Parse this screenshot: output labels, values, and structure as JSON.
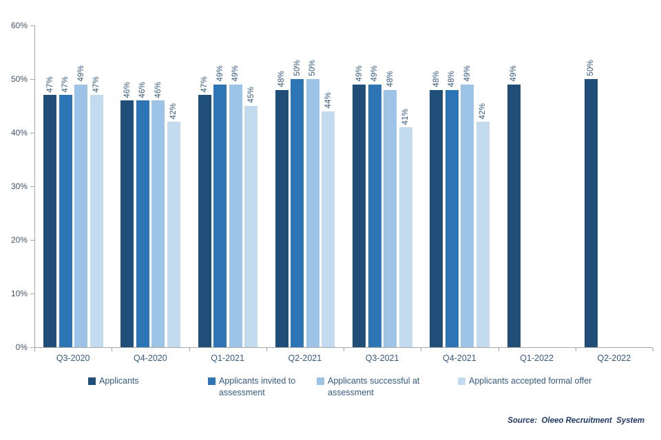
{
  "chart_data": {
    "type": "bar",
    "title": "",
    "categories": [
      "Q3-2020",
      "Q4-2020",
      "Q1-2021",
      "Q2-2021",
      "Q3-2021",
      "Q4-2021",
      "Q1-2022",
      "Q2-2022"
    ],
    "series": [
      {
        "name": "Applicants",
        "color": "#1F4E79",
        "values": [
          47,
          46,
          47,
          48,
          49,
          48,
          49,
          50
        ]
      },
      {
        "name": "Applicants invited to assessment",
        "color": "#2E75B6",
        "values": [
          47,
          46,
          49,
          50,
          49,
          48,
          null,
          null
        ]
      },
      {
        "name": "Applicants successful at assessment",
        "color": "#9DC3E6",
        "values": [
          49,
          46,
          49,
          50,
          48,
          49,
          null,
          null
        ]
      },
      {
        "name": "Applicants accepted formal offer",
        "color": "#C3DAEF",
        "values": [
          47,
          42,
          45,
          44,
          41,
          42,
          null,
          null
        ]
      }
    ],
    "value_suffix": "%",
    "data_labels": "rotated-90-above-bars",
    "ylim": [
      0,
      60
    ],
    "ytick_step": 10,
    "ytick_labels": [
      "0%",
      "10%",
      "20%",
      "30%",
      "40%",
      "50%",
      "60%"
    ],
    "grid": false,
    "legend_position": "bottom"
  },
  "source": {
    "text": "Source:  Oleeo Recruitment  System"
  }
}
